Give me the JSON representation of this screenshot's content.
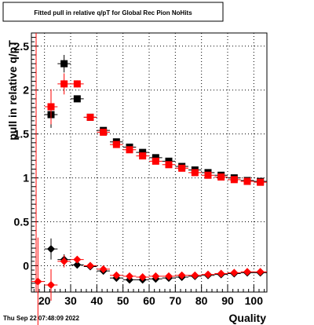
{
  "chart_data": {
    "type": "scatter",
    "title": "Fitted pull in relative q/pT for Global Rec Pion NoHits",
    "xlabel": "Quality",
    "ylabel": "pull in relative q/pT",
    "xlim": [
      15,
      105
    ],
    "ylim": [
      -0.3,
      2.65
    ],
    "xticks": [
      20,
      30,
      40,
      50,
      60,
      70,
      80,
      90,
      100
    ],
    "yticks": [
      0,
      0.5,
      1,
      1.5,
      2,
      2.5
    ],
    "ytick_labels": [
      "0",
      "0.5",
      "1",
      "1.5",
      "2",
      "2.5"
    ],
    "grid": true,
    "series": [
      {
        "marker": "square",
        "color": "#000000",
        "x": [
          22.5,
          27.5,
          32.5,
          37.5,
          42.5,
          47.5,
          52.5,
          57.5,
          62.5,
          67.5,
          72.5,
          77.5,
          82.5,
          87.5,
          92.5,
          97.5,
          102.5
        ],
        "y": [
          1.72,
          2.3,
          1.9,
          1.69,
          1.54,
          1.41,
          1.35,
          1.29,
          1.23,
          1.19,
          1.13,
          1.09,
          1.06,
          1.03,
          1.0,
          0.97,
          0.96
        ],
        "yerr": [
          0.15,
          0.1,
          0.03,
          0.025,
          0.02,
          0.015,
          0.015,
          0.012,
          0.012,
          0.01,
          0.01,
          0.01,
          0.01,
          0.01,
          0.01,
          0.01,
          0.01
        ]
      },
      {
        "marker": "square",
        "color": "#ff0000",
        "x": [
          22.5,
          27.5,
          32.5,
          37.5,
          42.5,
          47.5,
          52.5,
          57.5,
          62.5,
          67.5,
          72.5,
          77.5,
          82.5,
          87.5,
          92.5,
          97.5,
          102.5
        ],
        "y": [
          1.81,
          2.07,
          2.07,
          1.69,
          1.52,
          1.38,
          1.32,
          1.25,
          1.19,
          1.15,
          1.11,
          1.06,
          1.03,
          1.01,
          0.98,
          0.96,
          0.95
        ],
        "yerr": [
          0.2,
          0.12,
          0.04,
          0.03,
          0.02,
          0.015,
          0.015,
          0.012,
          0.012,
          0.01,
          0.01,
          0.01,
          0.01,
          0.01,
          0.01,
          0.01,
          0.01
        ]
      },
      {
        "marker": "diamond",
        "color": "#000000",
        "x": [
          22.5,
          27.5,
          32.5,
          37.5,
          42.5,
          47.5,
          52.5,
          57.5,
          62.5,
          67.5,
          72.5,
          77.5,
          82.5,
          87.5,
          92.5,
          97.5,
          102.5
        ],
        "y": [
          0.19,
          0.07,
          0.01,
          -0.01,
          -0.06,
          -0.14,
          -0.16,
          -0.16,
          -0.15,
          -0.14,
          -0.13,
          -0.12,
          -0.11,
          -0.1,
          -0.09,
          -0.08,
          -0.08
        ],
        "yerr": [
          0.12,
          0.06,
          0.03,
          0.02,
          0.02,
          0.015,
          0.012,
          0.012,
          0.01,
          0.01,
          0.01,
          0.01,
          0.01,
          0.01,
          0.01,
          0.01,
          0.01
        ]
      },
      {
        "marker": "diamond",
        "color": "#ff0000",
        "x": [
          17.5,
          22.5,
          27.5,
          32.5,
          37.5,
          42.5,
          47.5,
          52.5,
          57.5,
          62.5,
          67.5,
          72.5,
          77.5,
          82.5,
          87.5,
          92.5,
          97.5,
          102.5
        ],
        "y": [
          -0.18,
          -0.22,
          0.05,
          0.07,
          0.0,
          -0.04,
          -0.11,
          -0.12,
          -0.13,
          -0.12,
          -0.12,
          -0.11,
          -0.11,
          -0.1,
          -0.09,
          -0.08,
          -0.07,
          -0.07
        ],
        "yerr": [
          0.5,
          0.18,
          0.07,
          0.04,
          0.02,
          0.02,
          0.015,
          0.012,
          0.012,
          0.01,
          0.01,
          0.01,
          0.01,
          0.01,
          0.01,
          0.01,
          0.01,
          0.01
        ]
      }
    ]
  },
  "footer": {
    "timestamp": "Thu Sep 22 07:48:09 2022"
  }
}
